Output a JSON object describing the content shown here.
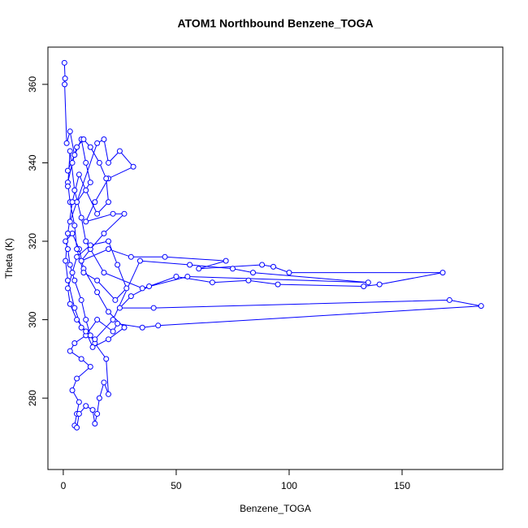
{
  "chart_data": {
    "type": "line",
    "markers": true,
    "title": "ATOM1 Northbound Benzene_TOGA",
    "xlabel": "Benzene_TOGA",
    "ylabel": "Theta (K)",
    "color": "#0000ff",
    "xlim": [
      -6.8,
      194.6
    ],
    "xticks": [
      0,
      50,
      100,
      150
    ],
    "ylim": [
      261.8,
      369.5
    ],
    "yticks": [
      280,
      300,
      320,
      340,
      360
    ],
    "x": [
      0.5,
      0.8,
      0.6,
      1.5,
      3,
      5,
      2,
      8,
      10,
      12,
      6,
      3,
      15,
      18,
      20,
      25,
      31,
      20,
      14,
      10,
      22,
      27,
      18,
      12,
      8,
      20,
      30,
      45,
      72,
      60,
      88,
      93,
      100,
      168,
      140,
      133,
      95,
      82,
      66,
      50,
      38,
      30,
      25,
      40,
      171,
      185,
      42,
      35,
      24,
      22,
      15,
      10,
      5,
      3,
      8,
      12,
      6,
      4,
      7,
      6,
      5,
      6,
      7,
      10,
      13,
      14,
      15,
      16,
      18,
      20,
      19,
      14,
      12,
      10,
      8,
      5,
      3,
      2,
      1,
      4,
      7,
      9,
      15,
      20,
      27,
      20,
      13,
      10,
      6,
      3,
      2,
      4,
      6,
      12,
      20,
      24,
      28,
      23,
      15,
      9,
      6,
      5,
      3,
      2,
      4,
      6,
      9,
      12,
      16,
      19,
      20,
      15,
      10,
      7,
      4,
      2,
      1,
      2,
      5,
      8,
      14,
      22,
      34,
      56,
      75,
      84,
      135,
      55,
      35,
      18,
      10,
      8,
      5,
      3,
      2
    ],
    "values": [
      365.5,
      361.5,
      360,
      345,
      348,
      342,
      338,
      346,
      340,
      335,
      330,
      325,
      345,
      346,
      340,
      343,
      339,
      336,
      330,
      325,
      327,
      327,
      322,
      318,
      315,
      318,
      316,
      316,
      315,
      313,
      314,
      313.5,
      312,
      312,
      309,
      308.5,
      309,
      310,
      309.5,
      311,
      308.5,
      306,
      303,
      303,
      305,
      303.5,
      298.5,
      298,
      299,
      297,
      300,
      296,
      294,
      292,
      290,
      288,
      285,
      282,
      279,
      276,
      273,
      272.5,
      276,
      278,
      277,
      273.5,
      276,
      280,
      284,
      281,
      290,
      294,
      296,
      300,
      305,
      310,
      314,
      318,
      320,
      322,
      318,
      313,
      307,
      302,
      298,
      295,
      293,
      297,
      300,
      304,
      308,
      312,
      316,
      319,
      320,
      314,
      308,
      305,
      310,
      312,
      318,
      324,
      330,
      335,
      340,
      344,
      346,
      344,
      340,
      336,
      330,
      327,
      333,
      337,
      330,
      322,
      315,
      310,
      303,
      298,
      295,
      300,
      315,
      314,
      313,
      312,
      309.5,
      311,
      308,
      312,
      320,
      326,
      333,
      343,
      334
    ]
  }
}
